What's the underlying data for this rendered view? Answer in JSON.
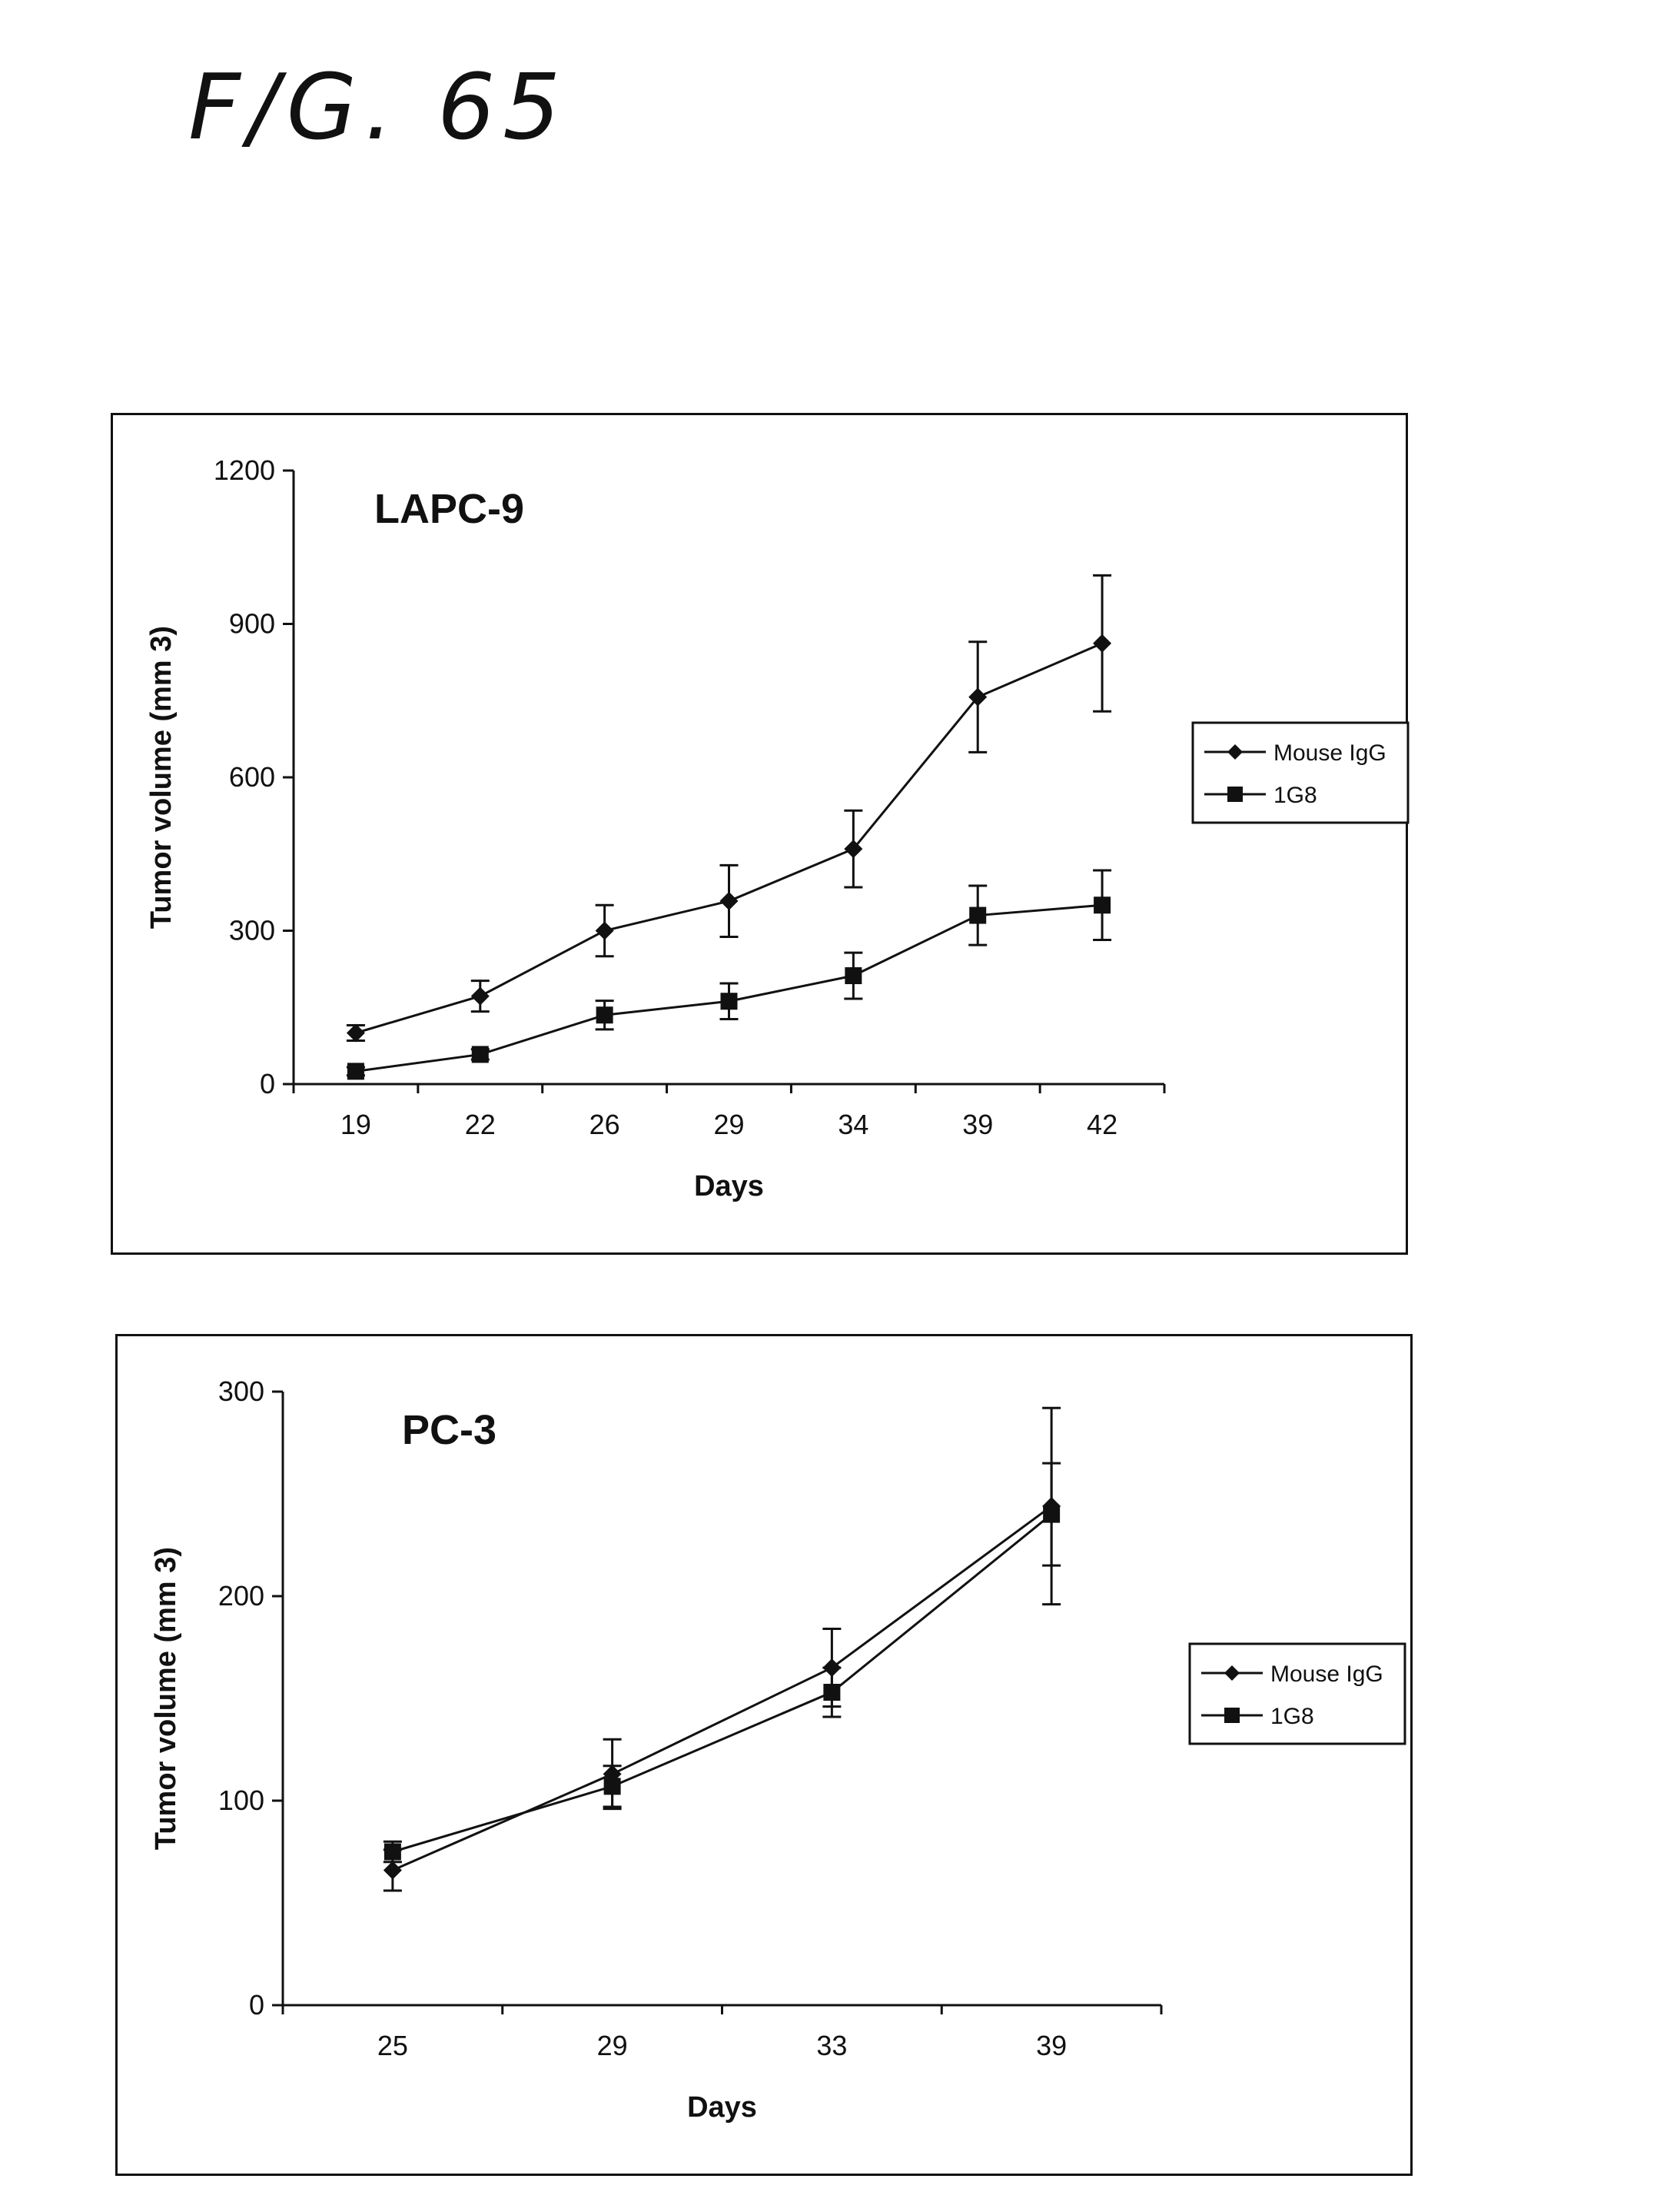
{
  "figure": {
    "title": "F/G. 65"
  },
  "chart_data": [
    {
      "type": "line",
      "title": "LAPC-9",
      "xlabel": "Days",
      "ylabel": "Tumor volume (mm 3)",
      "ylim": [
        0,
        1200
      ],
      "yticks": [
        "0",
        "300",
        "600",
        "900",
        "1200"
      ],
      "categories": [
        "19",
        "22",
        "26",
        "29",
        "34",
        "39",
        "42"
      ],
      "legend_position": "right",
      "series": [
        {
          "name": "Mouse IgG",
          "marker": "diamond",
          "values": [
            100,
            172,
            300,
            358,
            460,
            757,
            862
          ],
          "errors": [
            15,
            30,
            50,
            70,
            75,
            108,
            133
          ]
        },
        {
          "name": "1G8",
          "marker": "square",
          "values": [
            25,
            58,
            135,
            162,
            212,
            330,
            350
          ],
          "errors": [
            8,
            10,
            28,
            35,
            45,
            58,
            68
          ]
        }
      ]
    },
    {
      "type": "line",
      "title": "PC-3",
      "xlabel": "Days",
      "ylabel": "Tumor volume (mm 3)",
      "ylim": [
        0,
        300
      ],
      "yticks": [
        "0",
        "100",
        "200",
        "300"
      ],
      "categories": [
        "25",
        "29",
        "33",
        "39"
      ],
      "legend_position": "right",
      "series": [
        {
          "name": "Mouse IgG",
          "marker": "diamond",
          "values": [
            66,
            113,
            165,
            244
          ],
          "errors": [
            10,
            17,
            19,
            48
          ]
        },
        {
          "name": "1G8",
          "marker": "square",
          "values": [
            75,
            107,
            153,
            240
          ],
          "errors": [
            5,
            10,
            12,
            25
          ]
        }
      ]
    }
  ]
}
